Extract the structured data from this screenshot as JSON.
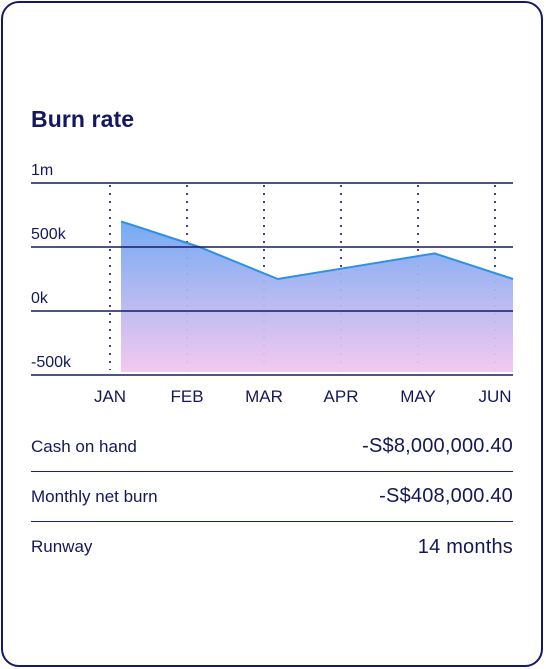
{
  "card": {
    "title": "Burn rate",
    "rows": [
      {
        "label": "Cash on hand",
        "value": "-S$8,000,000.40"
      },
      {
        "label": "Monthly net burn",
        "value": "-S$408,000.40"
      },
      {
        "label": "Runway",
        "value": "14 months"
      }
    ]
  },
  "colors": {
    "text": "#14185a",
    "border": "#16196a",
    "line": "#2e8fe8",
    "fill_top": "#6ea6f3",
    "fill_bottom": "#f3c6ee"
  },
  "chart_data": {
    "type": "area",
    "categories": [
      "JAN",
      "FEB",
      "MAR",
      "APR",
      "MAY",
      "JUN"
    ],
    "values": [
      700000,
      500000,
      250000,
      350000,
      450000,
      250000
    ],
    "y_ticks": [
      {
        "value": 1000000,
        "label": "1m"
      },
      {
        "value": 500000,
        "label": "500k"
      },
      {
        "value": 0,
        "label": "0k"
      },
      {
        "value": -500000,
        "label": "-500k"
      }
    ],
    "ylim": [
      -500000,
      1000000
    ],
    "title": "Burn rate",
    "grid": true,
    "vertical_gridlines": "dotted"
  }
}
